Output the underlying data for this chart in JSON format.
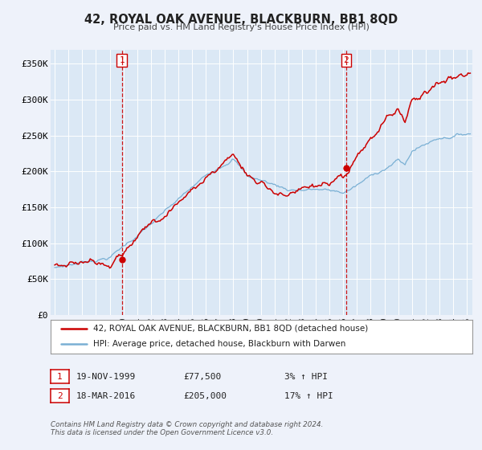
{
  "title": "42, ROYAL OAK AVENUE, BLACKBURN, BB1 8QD",
  "subtitle": "Price paid vs. HM Land Registry's House Price Index (HPI)",
  "background_color": "#eef2fa",
  "plot_bg_color": "#dbe8f5",
  "grid_color": "#ffffff",
  "ylim": [
    0,
    370000
  ],
  "yticks": [
    0,
    50000,
    100000,
    150000,
    200000,
    250000,
    300000,
    350000
  ],
  "ytick_labels": [
    "£0",
    "£50K",
    "£100K",
    "£150K",
    "£200K",
    "£250K",
    "£300K",
    "£350K"
  ],
  "sale1_date_num": 1999.88,
  "sale1_price": 77500,
  "sale1_label": "1",
  "sale2_date_num": 2016.21,
  "sale2_price": 205000,
  "sale2_label": "2",
  "sale_color": "#cc0000",
  "hpi_color": "#7ab0d4",
  "legend_line1": "42, ROYAL OAK AVENUE, BLACKBURN, BB1 8QD (detached house)",
  "legend_line2": "HPI: Average price, detached house, Blackburn with Darwen",
  "table_row1": [
    "1",
    "19-NOV-1999",
    "£77,500",
    "3% ↑ HPI"
  ],
  "table_row2": [
    "2",
    "18-MAR-2016",
    "£205,000",
    "17% ↑ HPI"
  ],
  "footnote1": "Contains HM Land Registry data © Crown copyright and database right 2024.",
  "footnote2": "This data is licensed under the Open Government Licence v3.0.",
  "xmin": 1994.7,
  "xmax": 2025.4
}
